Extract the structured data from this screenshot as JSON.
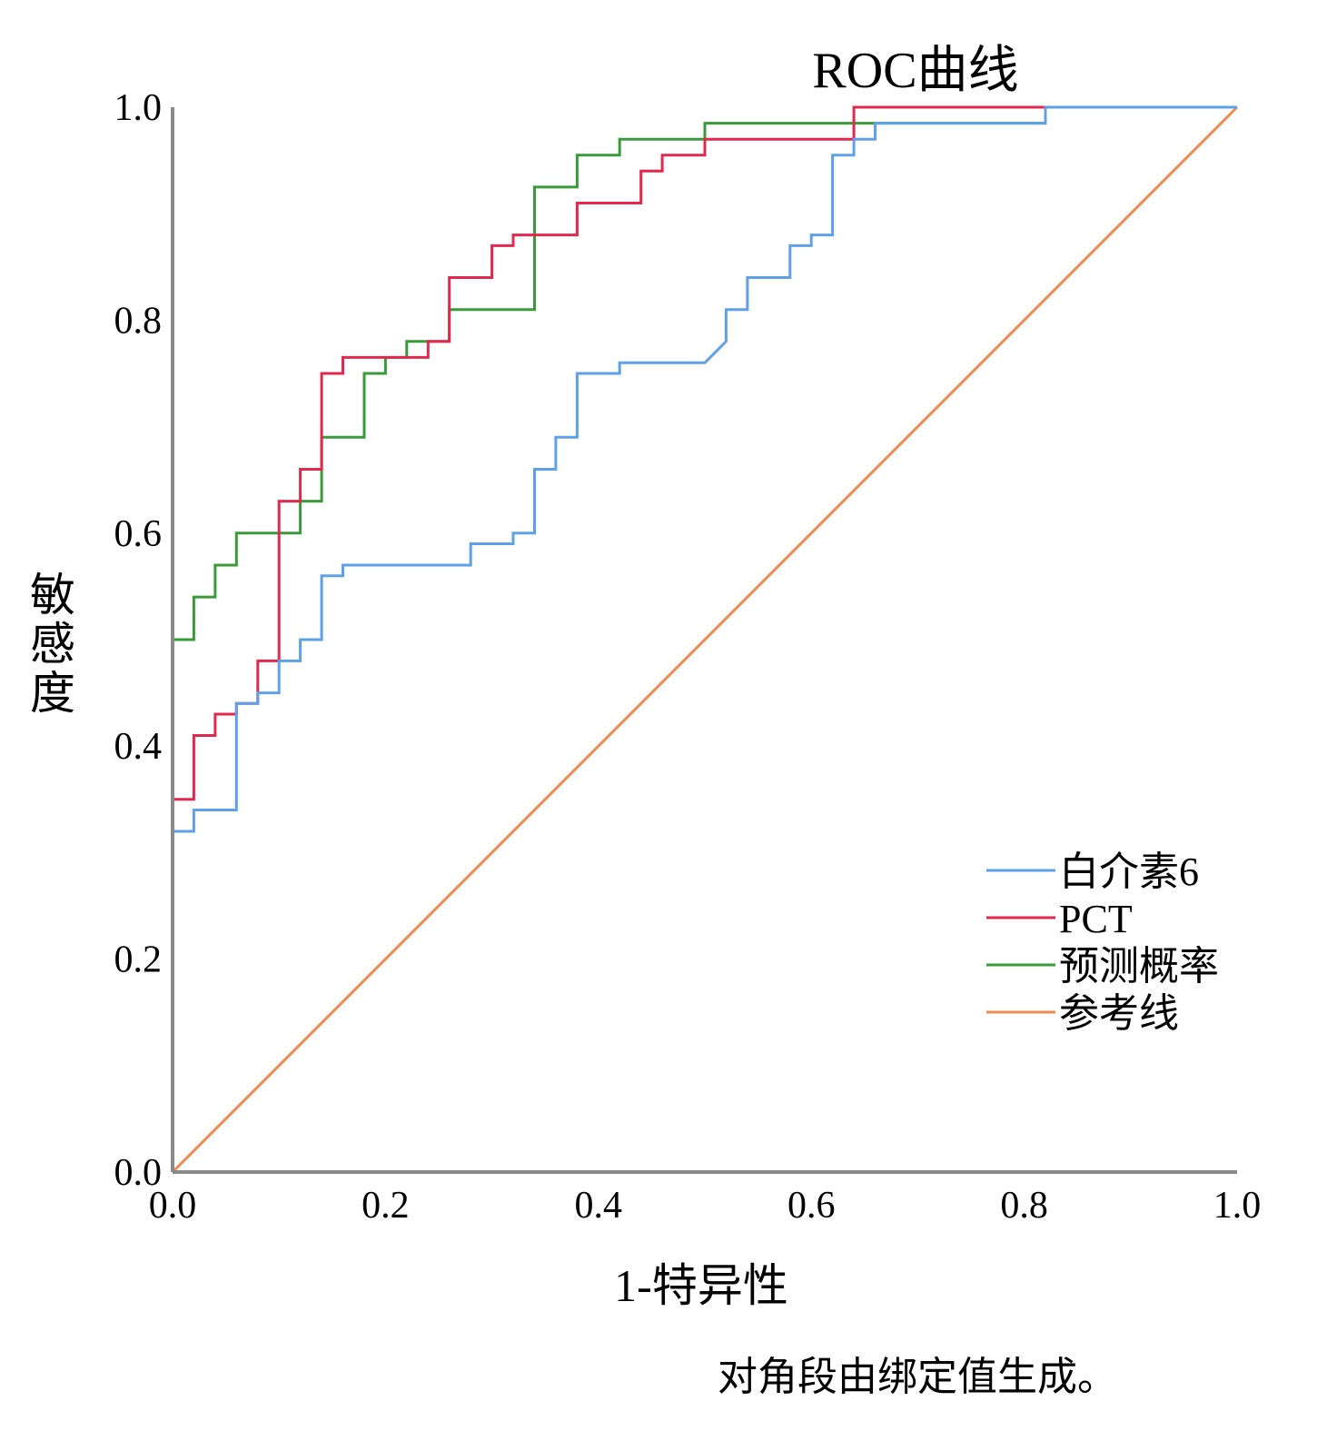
{
  "chart_data": {
    "type": "line",
    "title": "ROC曲线",
    "xlabel": "1-特异性",
    "ylabel": "敏感度",
    "xlim": [
      0,
      1
    ],
    "ylim": [
      0,
      1
    ],
    "x_ticks": [
      "0.0",
      "0.2",
      "0.4",
      "0.6",
      "0.8",
      "1.0"
    ],
    "y_ticks": [
      "0.0",
      "0.2",
      "0.4",
      "0.6",
      "0.8",
      "1.0"
    ],
    "grid": false,
    "legend_position": "bottom-right",
    "footnote": "对角段由绑定值生成。",
    "colors": {
      "axis": "#8a8a8a",
      "il6": "#5ea1e6",
      "pct": "#e0294f",
      "pred": "#3a9a3a",
      "ref": "#f08a50"
    },
    "series": [
      {
        "name": "白介素6",
        "color_key": "il6",
        "points": [
          [
            0,
            0
          ],
          [
            0,
            0.32
          ],
          [
            0.02,
            0.32
          ],
          [
            0.02,
            0.34
          ],
          [
            0.06,
            0.34
          ],
          [
            0.06,
            0.44
          ],
          [
            0.08,
            0.44
          ],
          [
            0.08,
            0.45
          ],
          [
            0.1,
            0.45
          ],
          [
            0.1,
            0.48
          ],
          [
            0.12,
            0.48
          ],
          [
            0.12,
            0.5
          ],
          [
            0.14,
            0.5
          ],
          [
            0.14,
            0.56
          ],
          [
            0.16,
            0.56
          ],
          [
            0.16,
            0.57
          ],
          [
            0.28,
            0.57
          ],
          [
            0.28,
            0.59
          ],
          [
            0.32,
            0.59
          ],
          [
            0.32,
            0.6
          ],
          [
            0.34,
            0.6
          ],
          [
            0.34,
            0.66
          ],
          [
            0.36,
            0.66
          ],
          [
            0.36,
            0.69
          ],
          [
            0.38,
            0.69
          ],
          [
            0.38,
            0.75
          ],
          [
            0.42,
            0.75
          ],
          [
            0.42,
            0.76
          ],
          [
            0.5,
            0.76
          ],
          [
            0.52,
            0.78
          ],
          [
            0.52,
            0.81
          ],
          [
            0.54,
            0.81
          ],
          [
            0.54,
            0.84
          ],
          [
            0.58,
            0.84
          ],
          [
            0.58,
            0.87
          ],
          [
            0.6,
            0.87
          ],
          [
            0.6,
            0.88
          ],
          [
            0.62,
            0.88
          ],
          [
            0.62,
            0.955
          ],
          [
            0.64,
            0.955
          ],
          [
            0.64,
            0.97
          ],
          [
            0.66,
            0.97
          ],
          [
            0.66,
            0.985
          ],
          [
            0.82,
            0.985
          ],
          [
            0.82,
            1.0
          ],
          [
            1.0,
            1.0
          ]
        ]
      },
      {
        "name": "PCT",
        "color_key": "pct",
        "points": [
          [
            0,
            0
          ],
          [
            0,
            0.35
          ],
          [
            0.02,
            0.35
          ],
          [
            0.02,
            0.41
          ],
          [
            0.04,
            0.41
          ],
          [
            0.04,
            0.43
          ],
          [
            0.06,
            0.43
          ],
          [
            0.06,
            0.44
          ],
          [
            0.08,
            0.44
          ],
          [
            0.08,
            0.48
          ],
          [
            0.1,
            0.48
          ],
          [
            0.1,
            0.63
          ],
          [
            0.12,
            0.63
          ],
          [
            0.12,
            0.66
          ],
          [
            0.14,
            0.66
          ],
          [
            0.14,
            0.75
          ],
          [
            0.16,
            0.75
          ],
          [
            0.16,
            0.765
          ],
          [
            0.24,
            0.765
          ],
          [
            0.24,
            0.78
          ],
          [
            0.26,
            0.78
          ],
          [
            0.26,
            0.84
          ],
          [
            0.3,
            0.84
          ],
          [
            0.3,
            0.87
          ],
          [
            0.32,
            0.87
          ],
          [
            0.32,
            0.88
          ],
          [
            0.38,
            0.88
          ],
          [
            0.38,
            0.91
          ],
          [
            0.44,
            0.91
          ],
          [
            0.44,
            0.94
          ],
          [
            0.46,
            0.94
          ],
          [
            0.46,
            0.955
          ],
          [
            0.5,
            0.955
          ],
          [
            0.5,
            0.97
          ],
          [
            0.64,
            0.97
          ],
          [
            0.64,
            1.0
          ],
          [
            1.0,
            1.0
          ]
        ]
      },
      {
        "name": "预测概率",
        "color_key": "pred",
        "points": [
          [
            0,
            0
          ],
          [
            0,
            0.5
          ],
          [
            0.02,
            0.5
          ],
          [
            0.02,
            0.54
          ],
          [
            0.04,
            0.54
          ],
          [
            0.04,
            0.57
          ],
          [
            0.06,
            0.57
          ],
          [
            0.06,
            0.6
          ],
          [
            0.12,
            0.6
          ],
          [
            0.12,
            0.63
          ],
          [
            0.14,
            0.63
          ],
          [
            0.14,
            0.69
          ],
          [
            0.18,
            0.69
          ],
          [
            0.18,
            0.75
          ],
          [
            0.2,
            0.75
          ],
          [
            0.2,
            0.765
          ],
          [
            0.22,
            0.765
          ],
          [
            0.22,
            0.78
          ],
          [
            0.26,
            0.78
          ],
          [
            0.26,
            0.81
          ],
          [
            0.34,
            0.81
          ],
          [
            0.34,
            0.925
          ],
          [
            0.38,
            0.925
          ],
          [
            0.38,
            0.955
          ],
          [
            0.42,
            0.955
          ],
          [
            0.42,
            0.97
          ],
          [
            0.5,
            0.97
          ],
          [
            0.5,
            0.985
          ],
          [
            0.82,
            0.985
          ],
          [
            0.82,
            1.0
          ],
          [
            1.0,
            1.0
          ]
        ]
      },
      {
        "name": "参考线",
        "color_key": "ref",
        "points": [
          [
            0,
            0
          ],
          [
            1,
            1
          ]
        ]
      }
    ]
  }
}
